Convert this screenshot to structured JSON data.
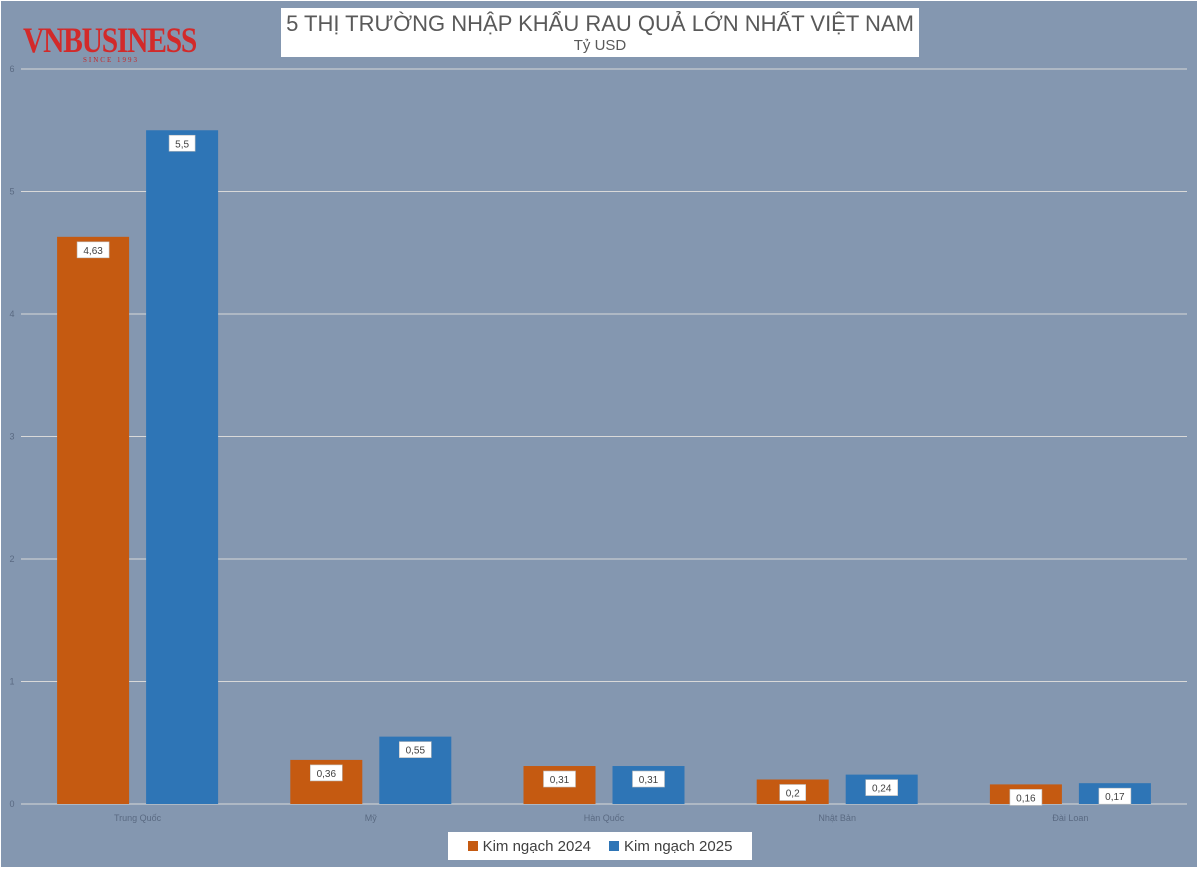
{
  "logo": {
    "text": "VNBUSINESS",
    "tagline": "SINCE 1993"
  },
  "chart_data": {
    "type": "bar",
    "title": "5 THỊ TRƯỜNG NHẬP KHẨU RAU QUẢ LỚN NHẤT VIỆT NAM",
    "subtitle": "Tỷ USD",
    "categories": [
      "Trung Quốc",
      "Mỹ",
      "Hàn Quốc",
      "Nhật Bản",
      "Đài Loan"
    ],
    "series": [
      {
        "name": "Kim ngạch 2024",
        "color": "#c55a11",
        "values": [
          4.63,
          0.36,
          0.31,
          0.2,
          0.16
        ],
        "labels": [
          "4,63",
          "0,36",
          "0,31",
          "0,2",
          "0,16"
        ]
      },
      {
        "name": "Kim ngạch 2025",
        "color": "#2e75b6",
        "values": [
          5.5,
          0.55,
          0.31,
          0.24,
          0.17
        ],
        "labels": [
          "5,5",
          "0,55",
          "0,31",
          "0,24",
          "0,17"
        ]
      }
    ],
    "ylim": [
      0,
      6
    ],
    "yticks": [
      0,
      1,
      2,
      3,
      4,
      5,
      6
    ],
    "grid": true,
    "legend_position": "bottom"
  }
}
